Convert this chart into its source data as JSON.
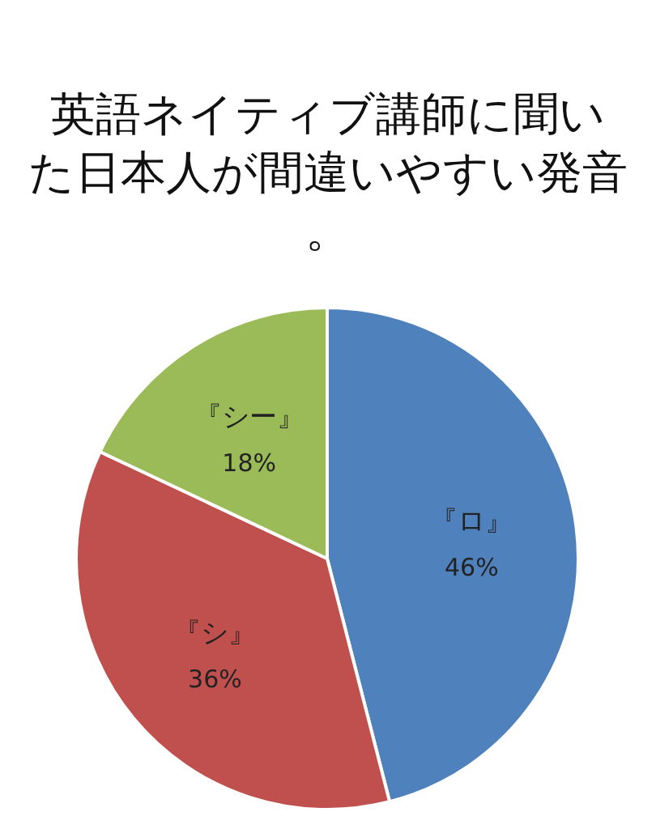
{
  "chart_data": {
    "type": "pie",
    "title": "英語ネイティブ講師に聞いた日本人が間違いやすい発音。",
    "categories": [
      "『ロ』",
      "『シ』",
      "『シー』"
    ],
    "values": [
      46,
      36,
      18
    ],
    "value_labels": [
      "46%",
      "36%",
      "18%"
    ],
    "colors": [
      "#4f81bd",
      "#c0504d",
      "#9bbb59"
    ],
    "legend": false
  }
}
